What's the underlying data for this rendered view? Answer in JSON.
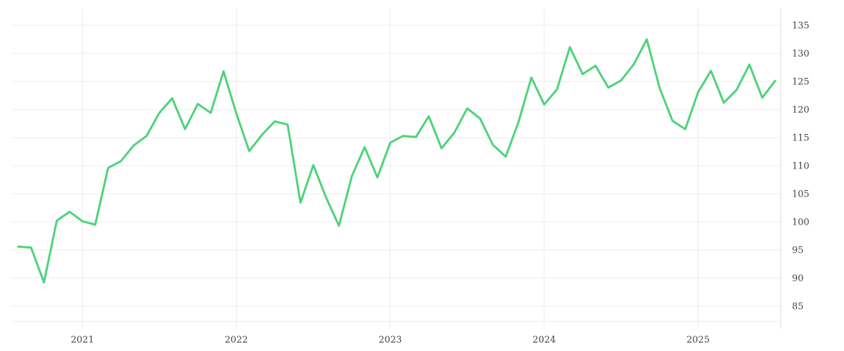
{
  "chart_data": {
    "type": "line",
    "title": "",
    "xlabel": "",
    "ylabel": "",
    "x_axis": "time",
    "y_axis_position": "right",
    "grid": true,
    "legend": "none",
    "xlim": [
      "2020-08",
      "2025-07"
    ],
    "ylim": [
      81,
      138
    ],
    "x_ticks": [
      {
        "value": "2021-01",
        "label": "2021"
      },
      {
        "value": "2022-01",
        "label": "2022"
      },
      {
        "value": "2023-01",
        "label": "2023"
      },
      {
        "value": "2024-01",
        "label": "2024"
      },
      {
        "value": "2025-01",
        "label": "2025"
      }
    ],
    "y_ticks": [
      85,
      90,
      95,
      100,
      105,
      110,
      115,
      120,
      125,
      130,
      135
    ],
    "series": [
      {
        "color": "#4fd27a",
        "x": [
          "2020-08",
          "2020-09",
          "2020-10",
          "2020-11",
          "2020-12",
          "2021-01",
          "2021-02",
          "2021-03",
          "2021-04",
          "2021-05",
          "2021-06",
          "2021-07",
          "2021-08",
          "2021-09",
          "2021-10",
          "2021-11",
          "2021-12",
          "2022-01",
          "2022-02",
          "2022-03",
          "2022-04",
          "2022-05",
          "2022-06",
          "2022-07",
          "2022-08",
          "2022-09",
          "2022-10",
          "2022-11",
          "2022-12",
          "2023-01",
          "2023-02",
          "2023-03",
          "2023-04",
          "2023-05",
          "2023-06",
          "2023-07",
          "2023-08",
          "2023-09",
          "2023-10",
          "2023-11",
          "2023-12",
          "2024-01",
          "2024-02",
          "2024-03",
          "2024-04",
          "2024-05",
          "2024-06",
          "2024-07",
          "2024-08",
          "2024-09",
          "2024-10",
          "2024-11",
          "2024-12",
          "2025-01",
          "2025-02",
          "2025-03",
          "2025-04",
          "2025-05",
          "2025-06",
          "2025-07"
        ],
        "values": [
          95.6,
          95.4,
          89.2,
          100.2,
          101.8,
          100.1,
          99.5,
          109.6,
          110.8,
          113.6,
          115.3,
          119.4,
          122.0,
          116.5,
          121.0,
          119.4,
          126.8,
          119.3,
          112.6,
          115.5,
          117.9,
          117.3,
          103.4,
          110.1,
          104.3,
          99.3,
          108.1,
          113.3,
          107.9,
          114.1,
          115.3,
          115.1,
          118.8,
          113.1,
          115.9,
          120.2,
          118.4,
          113.7,
          111.6,
          117.8,
          125.7,
          120.9,
          123.6,
          131.1,
          126.3,
          127.8,
          123.9,
          125.2,
          128.1,
          132.5,
          123.8,
          118.0,
          116.5,
          123.1,
          126.9,
          121.2,
          123.5,
          128.0,
          122.1,
          125.1
        ]
      }
    ]
  }
}
